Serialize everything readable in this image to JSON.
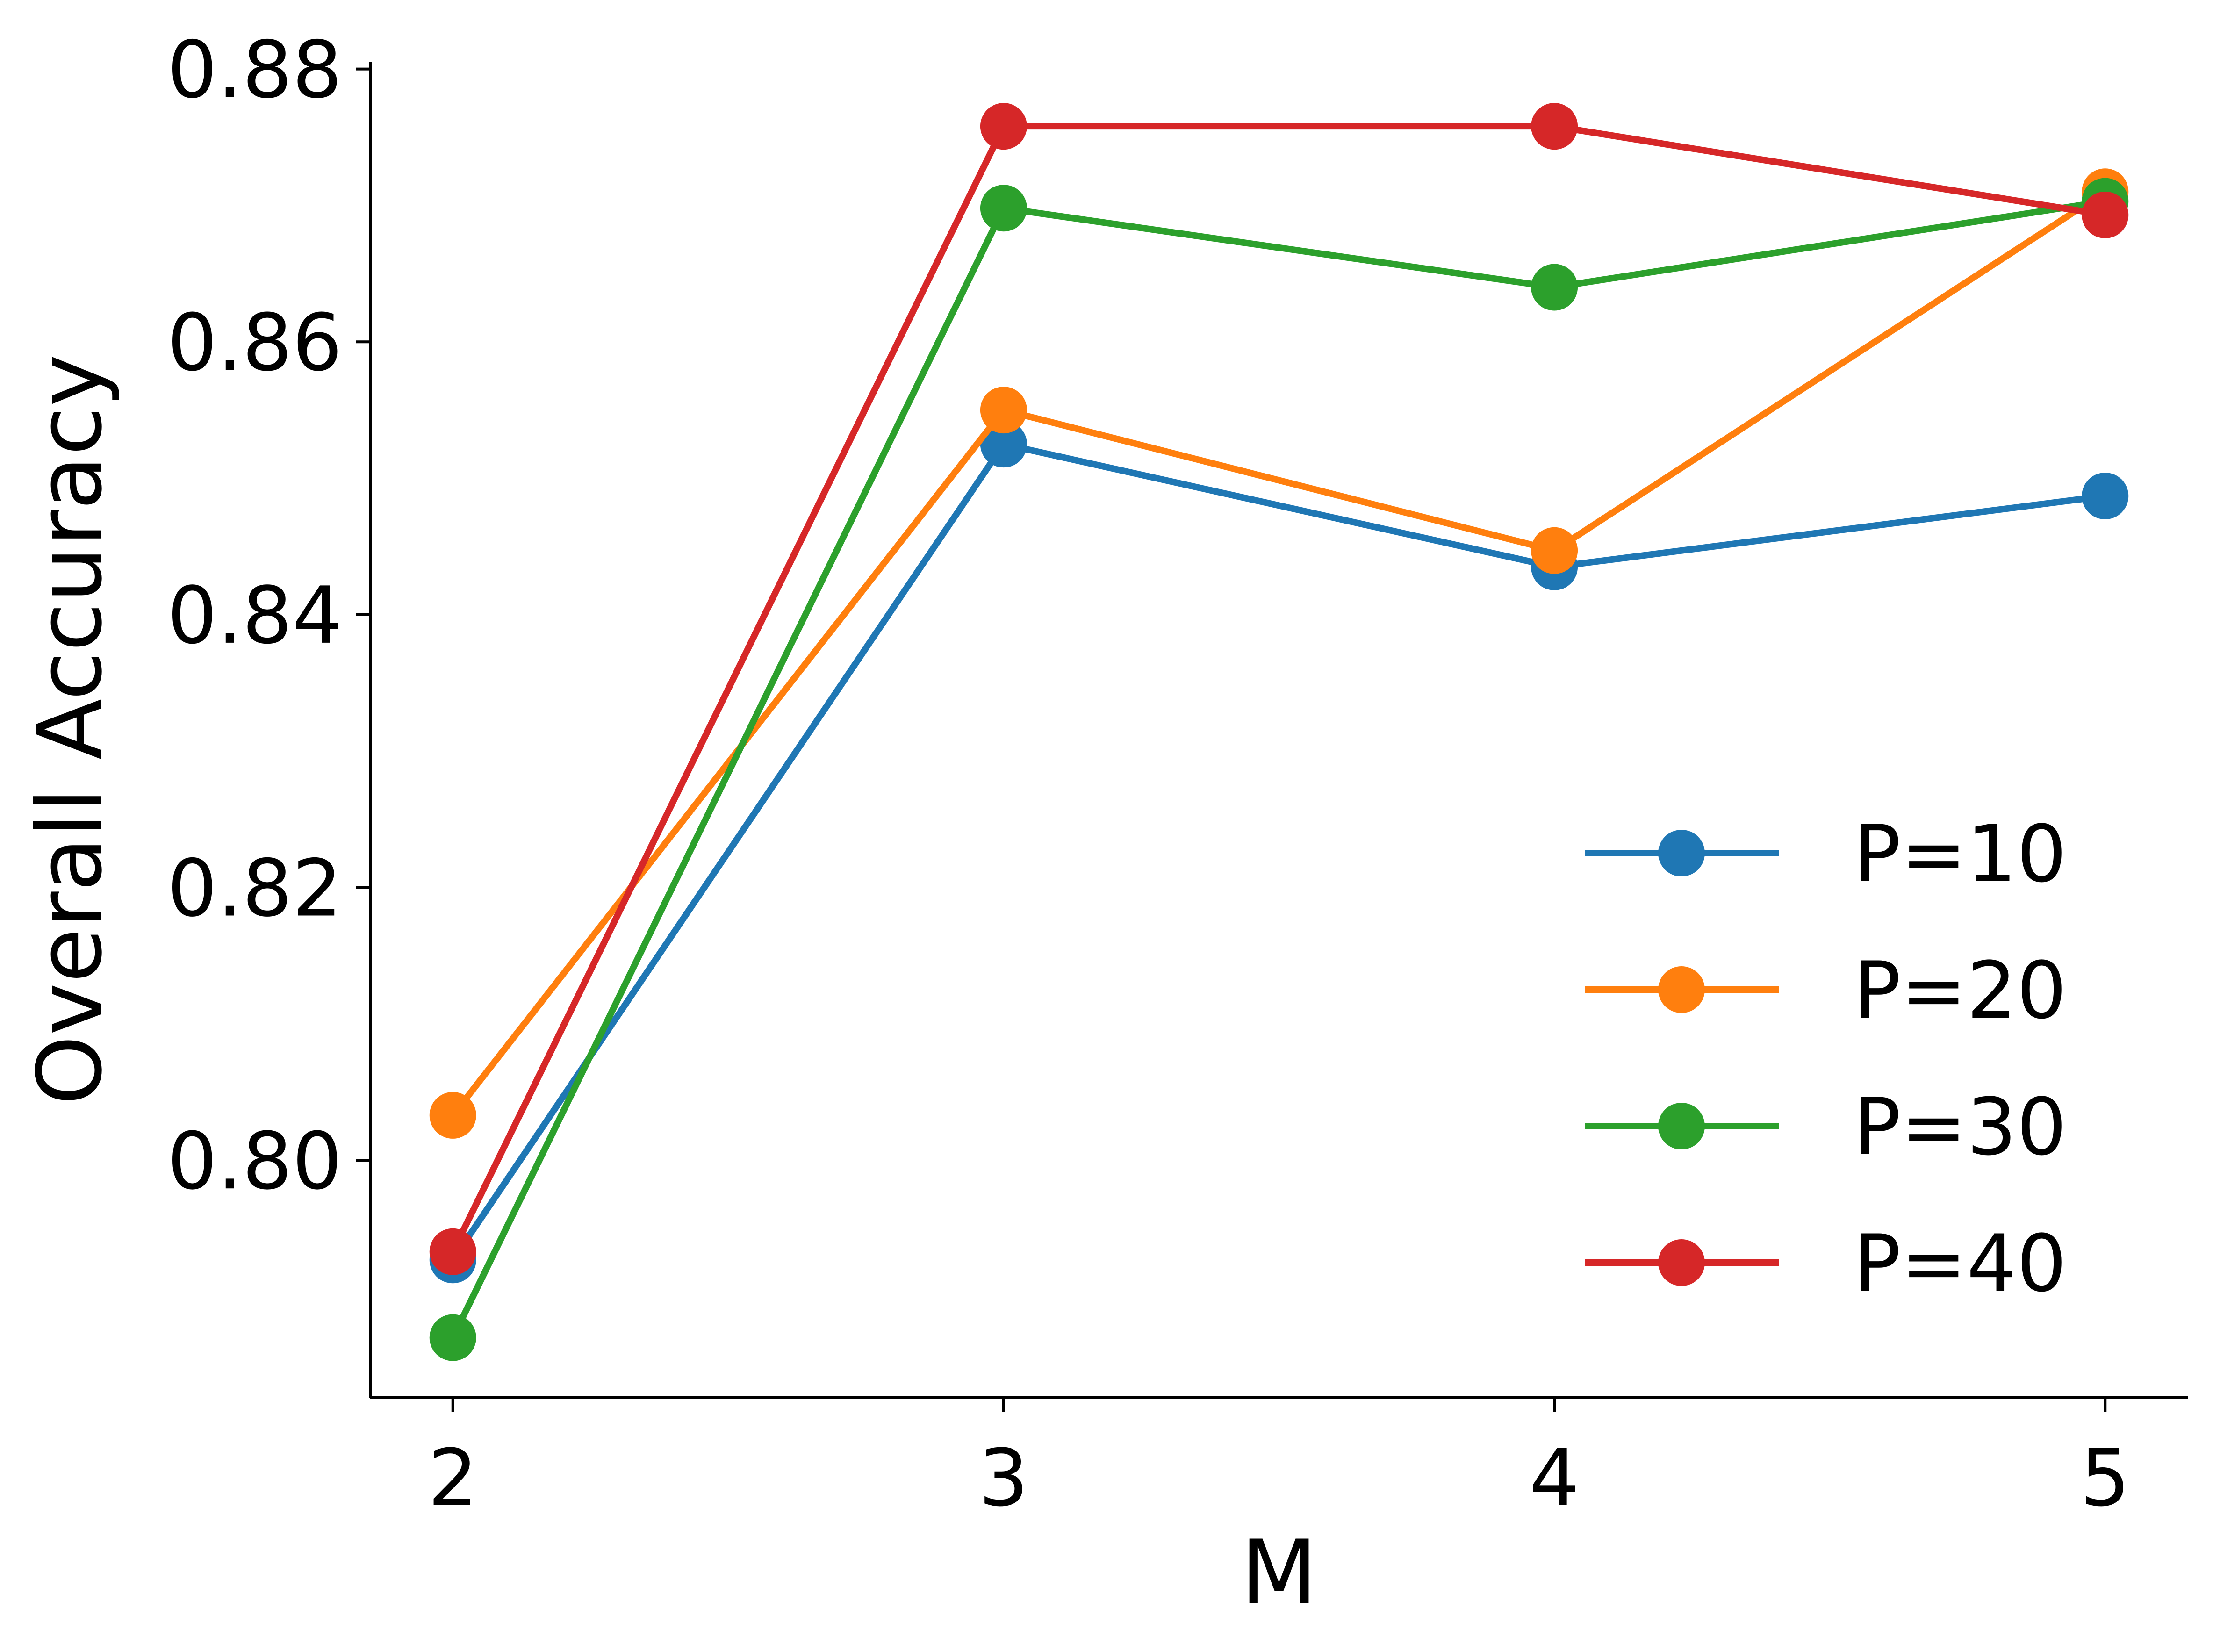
{
  "chart_data": {
    "type": "line",
    "xlabel": "M",
    "ylabel": "Overall Accuracy",
    "x": [
      2,
      3,
      4,
      5
    ],
    "x_ticks": [
      "2",
      "3",
      "4",
      "5"
    ],
    "y_ticks": [
      "0.80",
      "0.82",
      "0.84",
      "0.86",
      "0.88"
    ],
    "xlim": [
      1.85,
      5.15
    ],
    "ylim": [
      0.7826,
      0.8805
    ],
    "grid": false,
    "legend_position": "bottom-right",
    "series": [
      {
        "name": "P=10",
        "color": "#1f77b4",
        "values": [
          0.7927,
          0.8525,
          0.8435,
          0.8487
        ]
      },
      {
        "name": "P=20",
        "color": "#ff7f0e",
        "values": [
          0.8033,
          0.855,
          0.8447,
          0.871
        ]
      },
      {
        "name": "P=30",
        "color": "#2ca02c",
        "values": [
          0.787,
          0.8698,
          0.864,
          0.8703
        ]
      },
      {
        "name": "P=40",
        "color": "#d62728",
        "values": [
          0.7933,
          0.8758,
          0.8758,
          0.8693
        ]
      }
    ]
  }
}
